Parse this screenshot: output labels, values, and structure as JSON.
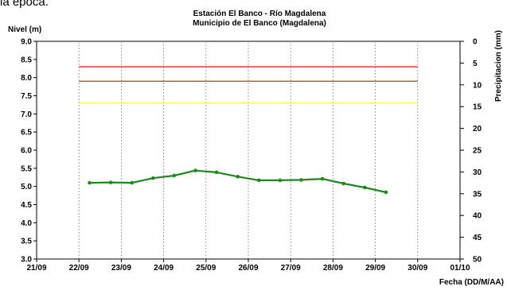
{
  "header_fragment": "la época.",
  "chart_data": {
    "type": "line",
    "title": "Estación El Banco - Río Magdalena",
    "subtitle": "Municipio de El Banco (Magdalena)",
    "ylabel": "Nivel (m)",
    "y2label": "Precipitacion (mm)",
    "xlabel": "Fecha (DD/M/AA)",
    "ylim": [
      3.0,
      9.0
    ],
    "y2lim": [
      0,
      50
    ],
    "y2_inverted": true,
    "xlim": [
      0,
      10
    ],
    "yticks": [
      "9.0",
      "8.5",
      "8.0",
      "7.5",
      "7.0",
      "6.5",
      "6.0",
      "5.5",
      "5.0",
      "4.5",
      "4.0",
      "3.5",
      "3.0"
    ],
    "y2ticks": [
      "0",
      "5",
      "10",
      "15",
      "20",
      "25",
      "30",
      "35",
      "40",
      "45",
      "50"
    ],
    "xticks": [
      "21/09",
      "22/09",
      "23/09",
      "24/09",
      "25/09",
      "26/09",
      "27/09",
      "28/09",
      "29/09",
      "30/09",
      "01/10"
    ],
    "grid": "vertical",
    "thresholds": [
      {
        "value": 8.3,
        "color": "#ff3333"
      },
      {
        "value": 7.9,
        "color": "#9b7045"
      },
      {
        "value": 7.3,
        "color": "#ffff33"
      }
    ],
    "threshold_x_range": [
      1.0,
      9.0
    ],
    "series": [
      {
        "color": "#1e8a1e",
        "x": [
          1.25,
          1.75,
          2.25,
          2.75,
          3.25,
          3.75,
          4.25,
          4.75,
          5.25,
          5.75,
          6.25,
          6.75,
          7.25,
          7.75,
          8.25
        ],
        "y": [
          5.1,
          5.11,
          5.1,
          5.23,
          5.3,
          5.44,
          5.39,
          5.27,
          5.17,
          5.17,
          5.18,
          5.21,
          5.08,
          4.97,
          4.84
        ]
      }
    ]
  }
}
